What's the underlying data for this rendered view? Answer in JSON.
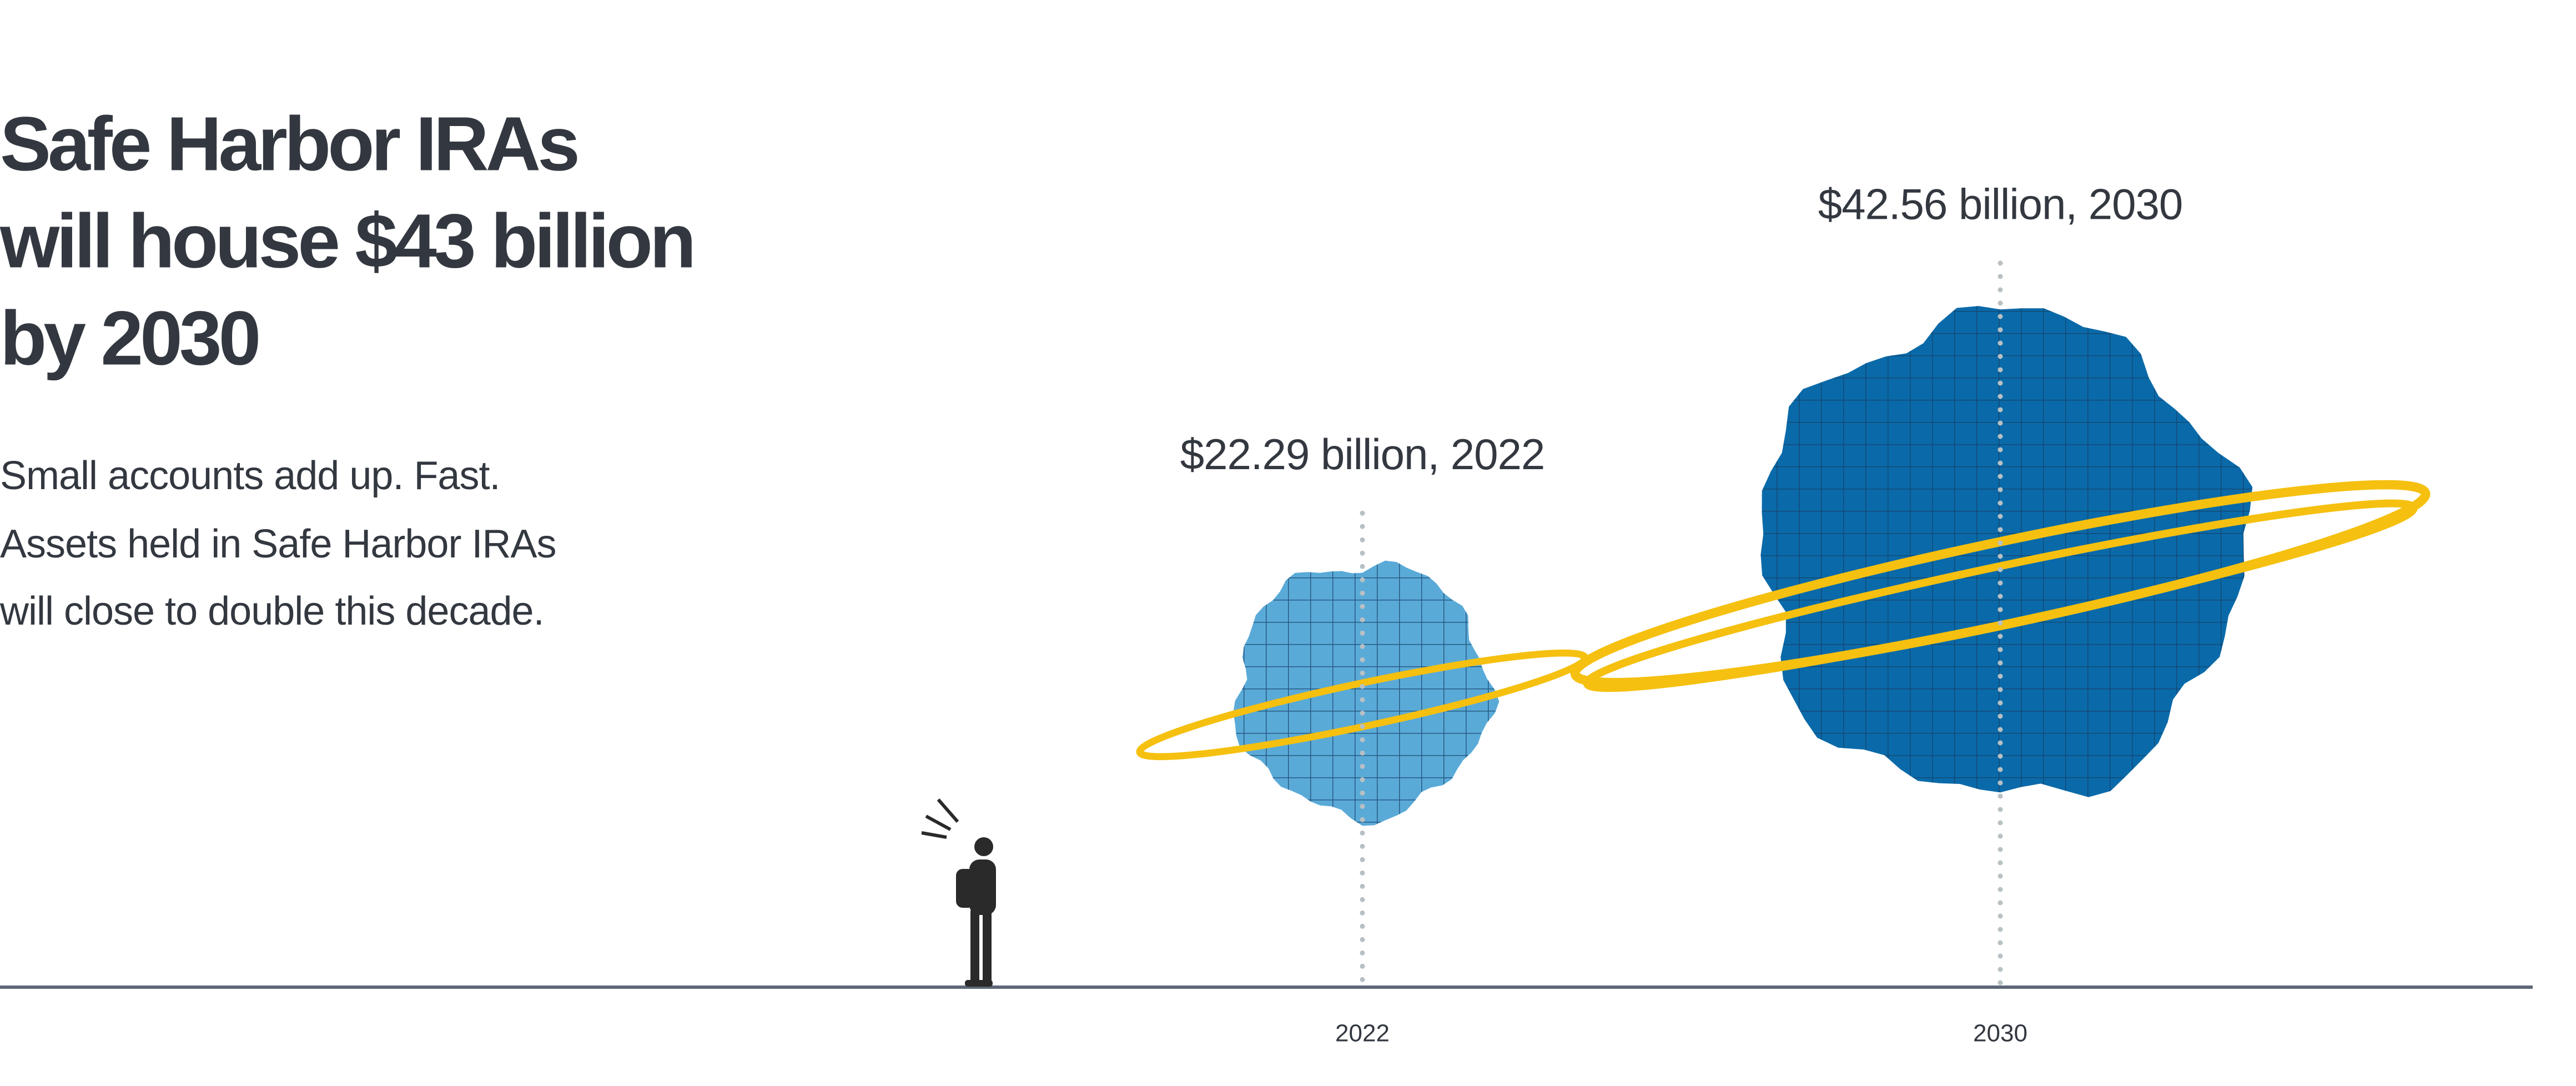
{
  "chart_data": {
    "type": "bubble",
    "title": [
      "Safe Harbor IRAs",
      "will house $43 billion",
      "by 2030"
    ],
    "subtitle": [
      "Small accounts add up. Fast.",
      "Assets held in Safe Harbor IRAs",
      "will close to double this decade."
    ],
    "categories": [
      "2022",
      "2030"
    ],
    "values": [
      22.29,
      42.56
    ],
    "value_labels": [
      "$22.29 billion, 2022",
      "$42.56 billion, 2030"
    ],
    "colors": [
      "#5aaad8",
      "#0a6aa9"
    ]
  }
}
